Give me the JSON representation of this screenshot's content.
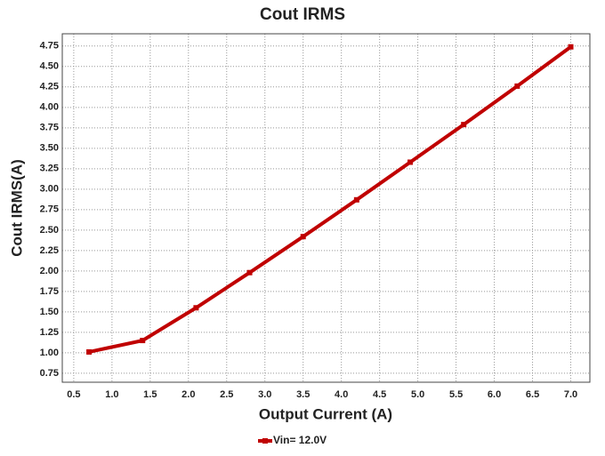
{
  "chart_data": {
    "type": "line",
    "title": "Cout IRMS",
    "x_label": "Output Current (A)",
    "y_label": "Cout IRMS(A)",
    "x": [
      0.7,
      1.4,
      2.1,
      2.8,
      3.5,
      4.2,
      4.9,
      5.6,
      6.3,
      7.0
    ],
    "series": [
      {
        "name": "Vin= 12.0V",
        "color": "#c00000",
        "values": [
          1.01,
          1.15,
          1.55,
          1.98,
          2.42,
          2.87,
          3.33,
          3.79,
          4.26,
          4.74
        ]
      }
    ],
    "xlim": [
      0.35,
      7.25
    ],
    "xticks": [
      0.5,
      {
        "value": 1,
        "label": "1.0"
      },
      1.5,
      {
        "value": 2,
        "label": "2.0"
      },
      2.5,
      {
        "value": 3,
        "label": "3.0"
      },
      3.5,
      {
        "value": 4,
        "label": "4.0"
      },
      4.5,
      {
        "value": 5,
        "label": "5.0"
      },
      5.5,
      {
        "value": 6,
        "label": "6.0"
      },
      6.5,
      {
        "value": 7,
        "label": "7.0"
      }
    ],
    "ylim": [
      0.64,
      4.9
    ],
    "yticks": [
      0.75,
      {
        "value": 1,
        "label": "1.00"
      },
      1.25,
      {
        "value": 1.5,
        "label": "1.50"
      },
      1.75,
      {
        "value": 2,
        "label": "2.00"
      },
      2.25,
      {
        "value": 2.5,
        "label": "2.50"
      },
      2.75,
      {
        "value": 3,
        "label": "3.00"
      },
      3.25,
      {
        "value": 3.5,
        "label": "3.50"
      },
      3.75,
      {
        "value": 4,
        "label": "4.00"
      },
      4.25,
      {
        "value": 4.5,
        "label": "4.50"
      },
      4.75
    ],
    "grid": true,
    "legend": "bottom"
  }
}
